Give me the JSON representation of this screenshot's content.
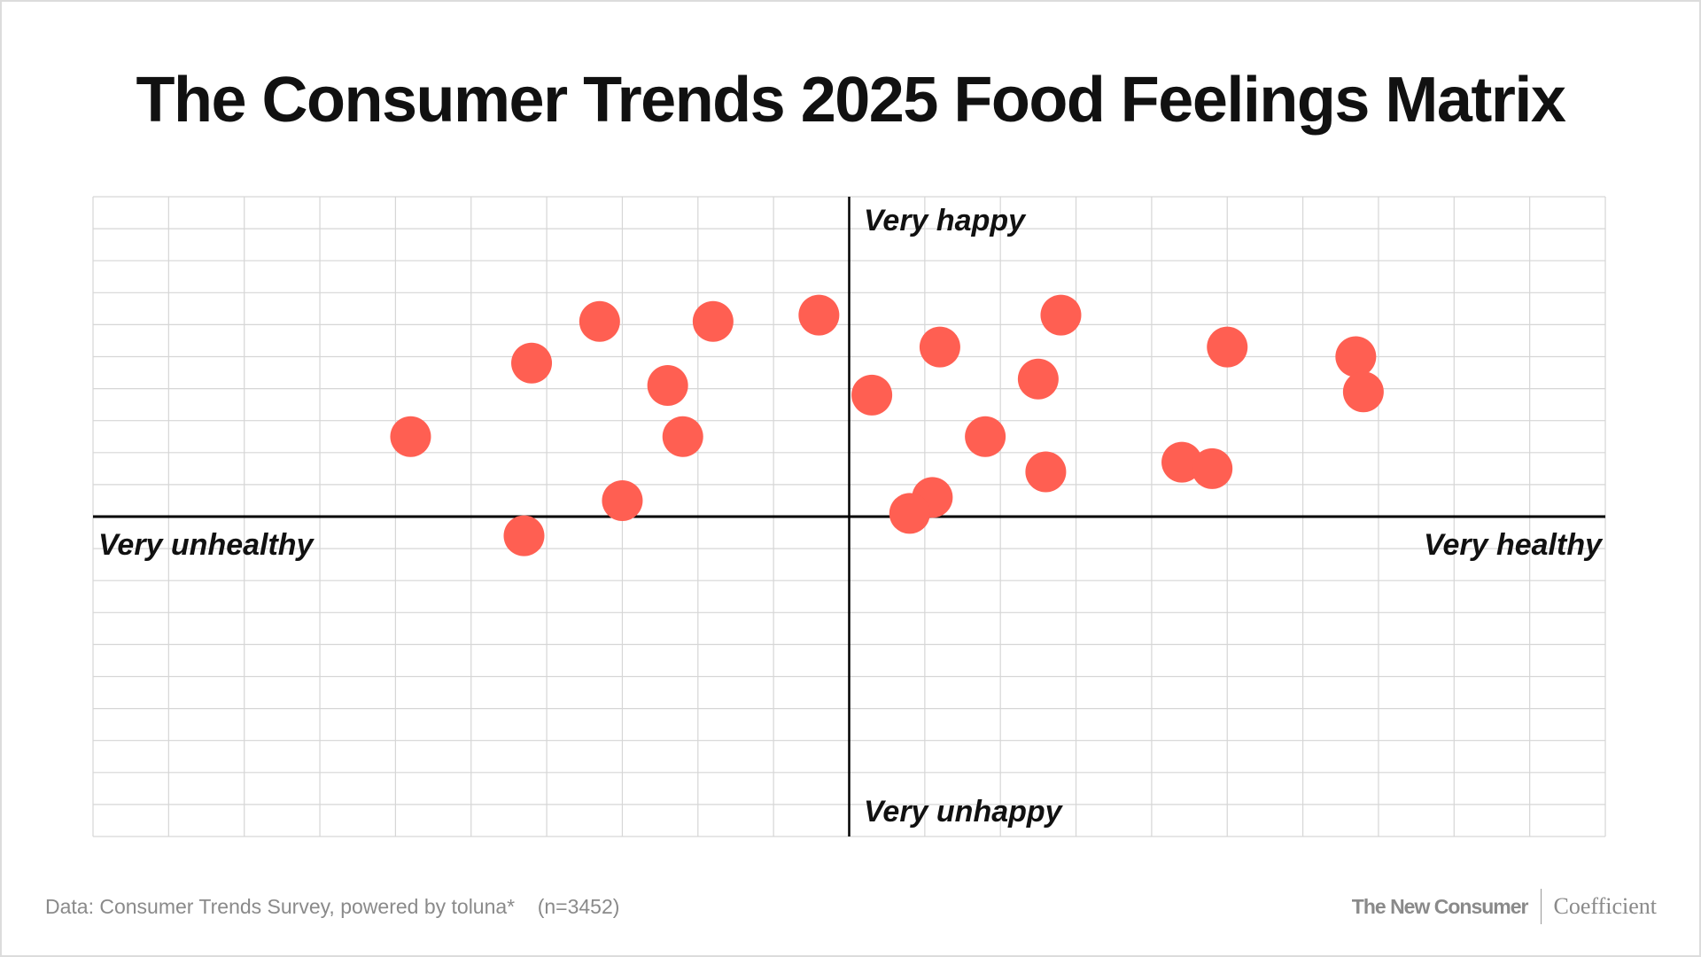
{
  "chart_data": {
    "type": "scatter",
    "title": "The Consumer Trends 2025 Food Feelings Matrix",
    "x_axis": {
      "left_label": "Very unhealthy",
      "right_label": "Very healthy",
      "range": [
        -10,
        10
      ]
    },
    "y_axis": {
      "top_label": "Very happy",
      "bottom_label": "Very unhappy",
      "range": [
        -10,
        10
      ]
    },
    "grid": true,
    "point_color": "#FF5F52",
    "points": [
      {
        "x": -5.8,
        "y": 2.5
      },
      {
        "x": -4.2,
        "y": 4.8
      },
      {
        "x": -3.3,
        "y": 6.1
      },
      {
        "x": -1.8,
        "y": 6.1
      },
      {
        "x": -0.4,
        "y": 6.3
      },
      {
        "x": -2.4,
        "y": 4.1
      },
      {
        "x": -2.2,
        "y": 2.5
      },
      {
        "x": -3.0,
        "y": 0.5
      },
      {
        "x": -4.3,
        "y": -0.6
      },
      {
        "x": 0.3,
        "y": 3.8
      },
      {
        "x": 1.2,
        "y": 5.3
      },
      {
        "x": 2.8,
        "y": 6.3
      },
      {
        "x": 2.5,
        "y": 4.3
      },
      {
        "x": 1.8,
        "y": 2.5
      },
      {
        "x": 2.6,
        "y": 1.4
      },
      {
        "x": 1.1,
        "y": 0.6
      },
      {
        "x": 0.8,
        "y": 0.1
      },
      {
        "x": 5.0,
        "y": 5.3
      },
      {
        "x": 6.7,
        "y": 5.0
      },
      {
        "x": 6.8,
        "y": 3.9
      },
      {
        "x": 4.4,
        "y": 1.7
      },
      {
        "x": 4.8,
        "y": 1.5
      }
    ]
  },
  "footer": {
    "source": "Data: Consumer Trends Survey, powered by toluna*",
    "sample": "(n=3452)",
    "brand_left": "The New Consumer",
    "brand_right": "Coefficient"
  }
}
